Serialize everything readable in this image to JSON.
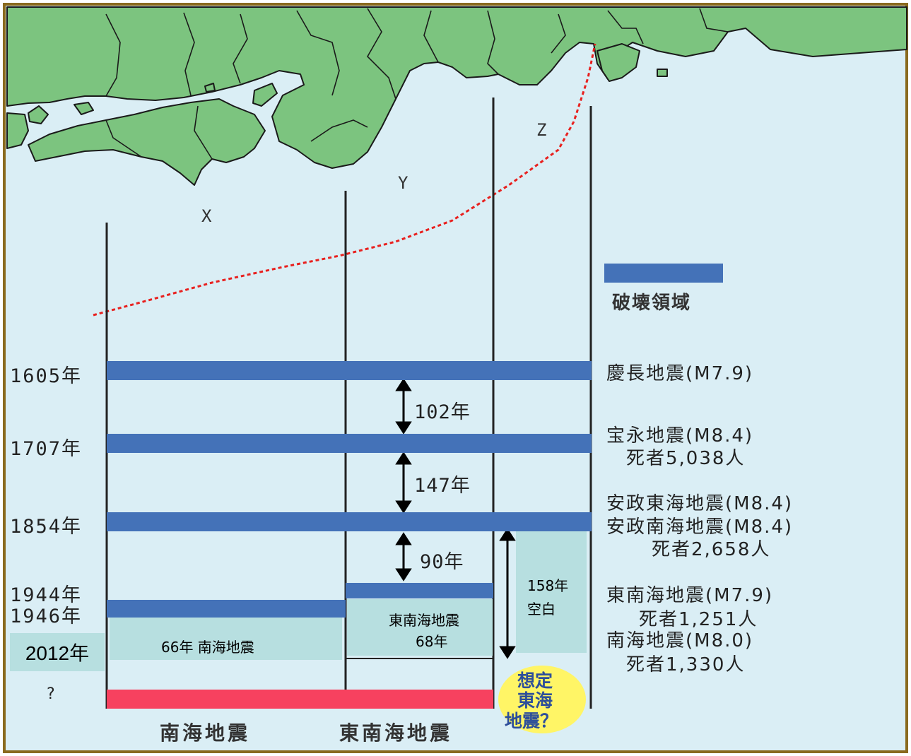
{
  "zones": [
    "X",
    "Y",
    "Z"
  ],
  "legend": {
    "label": "破壊領域",
    "color": "#4472b8"
  },
  "colors": {
    "sea": "#daeef5",
    "land": "#7cc47f",
    "rupture": "#4472b8",
    "expected": "#f7415f",
    "blank": "#b7dfe0",
    "trough": "#e8201e",
    "bubble": "#fff566"
  },
  "rows": [
    {
      "year": "1605年",
      "lines": [
        "慶長地震(M7.9)"
      ]
    },
    {
      "year": "1707年",
      "lines": [
        "宝永地震(M8.4)",
        "死者5,038人"
      ]
    },
    {
      "year": "1854年",
      "lines": [
        "安政東海地震(M8.4)",
        "安政南海地震(M8.4)",
        "死者2,658人"
      ]
    },
    {
      "year": "1944年",
      "lines": [
        "東南海地震(M7.9)",
        "死者1,251人"
      ]
    },
    {
      "year": "1946年",
      "lines": [
        "南海地震(M8.0)",
        "死者1,330人"
      ]
    }
  ],
  "intervals": [
    "102年",
    "147年",
    "90年"
  ],
  "blank_z": [
    "158年",
    "空白"
  ],
  "blank_y": [
    "東南海地震",
    "68年"
  ],
  "blank_x": "66年  南海地震",
  "current_year": "2012年",
  "unknown": "?",
  "expected_bubble": [
    "想定",
    "東海",
    "地震？"
  ],
  "bottom_labels": {
    "nankai": "南海地震",
    "tonankai": "東南海地震"
  }
}
